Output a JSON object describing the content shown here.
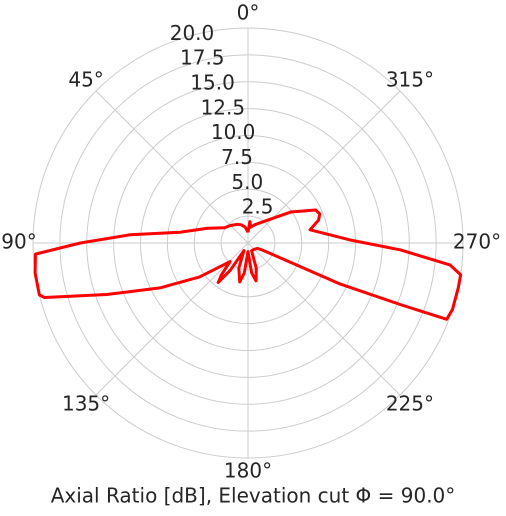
{
  "chart_data": {
    "type": "polar",
    "title": "Axial Ratio [dB], Elevation cut Φ = 90.0°",
    "theta_zero": "N",
    "theta_direction": "counterclockwise",
    "x": [
      0,
      10,
      20,
      30,
      45,
      57,
      70,
      81,
      86,
      90,
      93,
      98,
      104,
      105,
      110,
      117,
      125,
      136,
      140,
      143,
      147,
      152,
      160,
      168,
      173,
      180,
      187,
      192,
      198,
      205,
      220,
      240,
      244,
      246,
      248,
      249,
      252,
      258,
      261.5,
      263.8,
      267.4,
      271.7,
      282,
      288,
      292,
      296,
      306,
      326,
      340,
      350,
      355,
      358,
      360
    ],
    "values": [
      1.0,
      1.5,
      1.8,
      2.0,
      2.3,
      2.6,
      4.0,
      6.4,
      11.0,
      15.6,
      19.8,
      20.0,
      20.0,
      19.6,
      14.0,
      9.2,
      5.5,
      2.4,
      3.8,
      4.6,
      3.0,
      0.8,
      2.5,
      3.7,
      2.8,
      0.8,
      2.8,
      3.6,
      2.5,
      0.8,
      0.8,
      1.0,
      1.5,
      9.4,
      15.3,
      19.8,
      20.0,
      20.0,
      20.0,
      18.9,
      14.2,
      9.5,
      5.9,
      6.9,
      7.2,
      7.0,
      4.9,
      2.35,
      1.8,
      1.5,
      2.0,
      1.2,
      1.0
    ],
    "color": "#ff0000",
    "rlim": [
      0,
      20
    ],
    "rticks": [
      2.5,
      {
        "value": 5,
        "label": "5.0"
      },
      7.5,
      {
        "value": 10,
        "label": "10.0"
      },
      12.5,
      {
        "value": 15,
        "label": "15.0"
      },
      17.5,
      {
        "value": 20,
        "label": "20.0"
      }
    ],
    "thetaticks": [
      {
        "value": 0,
        "label": "0°"
      },
      {
        "value": 45,
        "label": "45°"
      },
      {
        "value": 90,
        "label": "90°"
      },
      {
        "value": 135,
        "label": "135°"
      },
      {
        "value": 180,
        "label": "180°"
      },
      {
        "value": 225,
        "label": "225°"
      },
      {
        "value": 270,
        "label": "270°"
      },
      {
        "value": 315,
        "label": "315°"
      }
    ],
    "grid": true
  }
}
